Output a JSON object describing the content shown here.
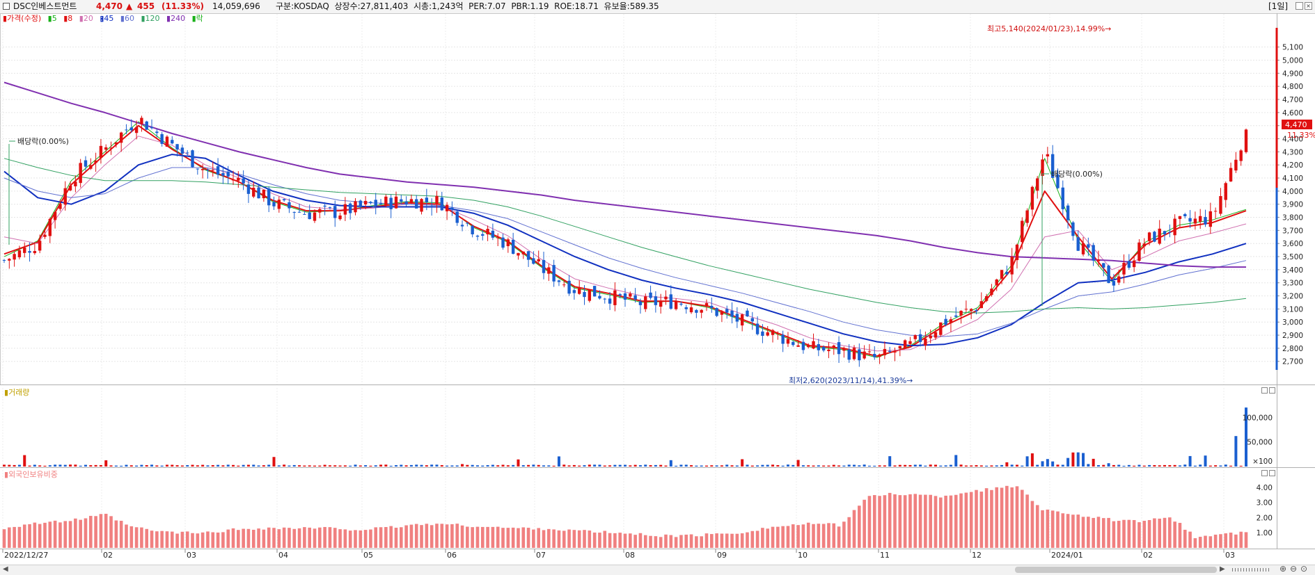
{
  "header": {
    "stock_name": "DSC인베스트먼트",
    "price": "4,470",
    "change_arrow": "▲",
    "change": "455",
    "change_pct": "(11.33%)",
    "volume": "14,059,696",
    "info": "구분:KOSDAQ  상장수:27,811,403  시총:1,243억  PER:7.07  PBR:1.19  ROE:18.71  유보율:589.35",
    "period": "[1일]"
  },
  "legend": {
    "price_label": "가격(수정)",
    "ma_labels": [
      "5",
      "8",
      "20",
      "45",
      "60",
      "120",
      "240"
    ],
    "ex_label": "락"
  },
  "colors": {
    "up": "#e01010",
    "down": "#1a5fd0",
    "ma5": "#18b018",
    "ma8": "#e01010",
    "ma20": "#d070b0",
    "ma45": "#1030c0",
    "ma60": "#6070d0",
    "ma120": "#30a060",
    "ma240": "#8030b0",
    "foreign": "#f08080"
  },
  "price_panel": {
    "annotation_high": "최고5,140(2024/01/23),14.99%→",
    "annotation_low": "최저2,620(2023/11/14),41.39%→",
    "ex_div_1": "배당락(0.00%)",
    "ex_div_2": "배당락(0.00%)",
    "current_price_tag": "4,470",
    "current_pct": "11.33%"
  },
  "volume_panel": {
    "title": "거래량"
  },
  "foreign_panel": {
    "title": "외국인보유비중"
  },
  "chart_data": [
    {
      "type": "candlestick",
      "title": "가격(수정)",
      "ylim": [
        2550,
        5300
      ],
      "y_ticks": [
        "5,100",
        "5,000",
        "4,900",
        "4,800",
        "4,700",
        "4,600",
        "4,500",
        "4,400",
        "4,300",
        "4,200",
        "4,100",
        "4,000",
        "3,900",
        "3,800",
        "3,700",
        "3,600",
        "3,500",
        "3,400",
        "3,300",
        "3,200",
        "3,100",
        "3,000",
        "2,900",
        "2,800",
        "2,700"
      ],
      "x_ticks": [
        "2022/12/27",
        "02",
        "03",
        "04",
        "05",
        "06",
        "07",
        "08",
        "09",
        "10",
        "11",
        "12",
        "2024/01",
        "02",
        "03"
      ],
      "closes": [
        3470,
        3600,
        4100,
        4320,
        4560,
        4350,
        4160,
        4080,
        3910,
        3830,
        3840,
        3900,
        3930,
        3920,
        3710,
        3600,
        3410,
        3250,
        3200,
        3140,
        3160,
        3100,
        3000,
        2900,
        2800,
        2780,
        2720,
        2820,
        3000,
        3120,
        3450,
        4300,
        3600,
        3300,
        3620,
        3750,
        3800,
        4470
      ],
      "series": [
        {
          "name": "5",
          "values": [
            3500,
            3620,
            4080,
            4300,
            4530,
            4330,
            4160,
            4070,
            3920,
            3840,
            3850,
            3890,
            3920,
            3910,
            3720,
            3610,
            3420,
            3260,
            3210,
            3150,
            3160,
            3110,
            3010,
            2910,
            2810,
            2790,
            2730,
            2820,
            2990,
            3110,
            3430,
            4250,
            3620,
            3310,
            3610,
            3740,
            3780,
            3860
          ]
        },
        {
          "name": "8",
          "values": [
            3520,
            3610,
            4050,
            4280,
            4500,
            4320,
            4170,
            4070,
            3930,
            3850,
            3850,
            3880,
            3910,
            3900,
            3730,
            3620,
            3430,
            3270,
            3220,
            3160,
            3160,
            3120,
            3020,
            2920,
            2820,
            2800,
            2740,
            2810,
            2970,
            3090,
            3400,
            4000,
            3650,
            3330,
            3590,
            3720,
            3760,
            3850
          ]
        },
        {
          "name": "20",
          "values": [
            3650,
            3600,
            3950,
            4200,
            4420,
            4350,
            4200,
            4100,
            3980,
            3880,
            3860,
            3870,
            3900,
            3890,
            3780,
            3660,
            3480,
            3330,
            3260,
            3200,
            3180,
            3150,
            3060,
            2980,
            2880,
            2820,
            2780,
            2790,
            2900,
            3020,
            3250,
            3650,
            3700,
            3400,
            3500,
            3620,
            3680,
            3750
          ]
        },
        {
          "name": "45",
          "values": [
            4150,
            3950,
            3900,
            4000,
            4200,
            4280,
            4250,
            4120,
            4000,
            3930,
            3890,
            3880,
            3880,
            3880,
            3830,
            3740,
            3620,
            3500,
            3400,
            3320,
            3260,
            3210,
            3150,
            3070,
            2990,
            2910,
            2850,
            2820,
            2830,
            2880,
            2980,
            3150,
            3300,
            3320,
            3380,
            3460,
            3520,
            3600
          ]
        },
        {
          "name": "60",
          "values": [
            4100,
            4000,
            3950,
            3980,
            4100,
            4180,
            4180,
            4130,
            4050,
            3980,
            3930,
            3910,
            3900,
            3890,
            3850,
            3790,
            3690,
            3590,
            3490,
            3410,
            3340,
            3280,
            3220,
            3150,
            3080,
            3000,
            2940,
            2900,
            2890,
            2910,
            2990,
            3100,
            3200,
            3230,
            3290,
            3360,
            3410,
            3470
          ]
        },
        {
          "name": "120",
          "values": [
            4250,
            4180,
            4120,
            4080,
            4080,
            4080,
            4070,
            4050,
            4030,
            4010,
            3990,
            3980,
            3970,
            3960,
            3930,
            3880,
            3810,
            3730,
            3650,
            3570,
            3500,
            3430,
            3370,
            3310,
            3250,
            3200,
            3150,
            3110,
            3080,
            3070,
            3080,
            3100,
            3110,
            3100,
            3110,
            3130,
            3150,
            3180
          ]
        },
        {
          "name": "240",
          "values": [
            4830,
            4750,
            4670,
            4600,
            4520,
            4440,
            4370,
            4300,
            4240,
            4180,
            4130,
            4100,
            4070,
            4050,
            4030,
            4000,
            3970,
            3930,
            3900,
            3870,
            3840,
            3810,
            3780,
            3750,
            3720,
            3690,
            3660,
            3620,
            3570,
            3530,
            3500,
            3490,
            3480,
            3470,
            3450,
            3430,
            3420,
            3420
          ]
        }
      ]
    },
    {
      "type": "bar",
      "title": "거래량",
      "y_ticks": [
        "100,000",
        "50,000",
        "×100"
      ],
      "ylim": [
        0,
        140000
      ]
    },
    {
      "type": "bar",
      "title": "외국인보유비중",
      "y_ticks": [
        "4.00",
        "3.00",
        "2.00",
        "1.00"
      ],
      "ylim": [
        0,
        4.5
      ],
      "values": [
        1.3,
        1.6,
        1.7,
        1.9,
        2.2,
        1.4,
        1.1,
        1.0,
        1.0,
        1.2,
        1.3,
        1.3,
        1.3,
        1.3,
        1.2,
        1.3,
        1.5,
        1.6,
        1.5,
        1.4,
        1.3,
        1.3,
        1.2,
        1.1,
        1.0,
        0.9,
        0.8,
        0.8,
        0.9,
        1.0,
        1.3,
        1.5,
        1.6,
        1.5,
        3.3,
        3.6,
        3.5,
        3.4,
        3.7,
        3.9,
        4.1,
        2.5,
        2.3,
        2.0,
        1.8,
        1.7,
        2.1,
        0.7,
        0.9,
        1.0
      ]
    }
  ]
}
